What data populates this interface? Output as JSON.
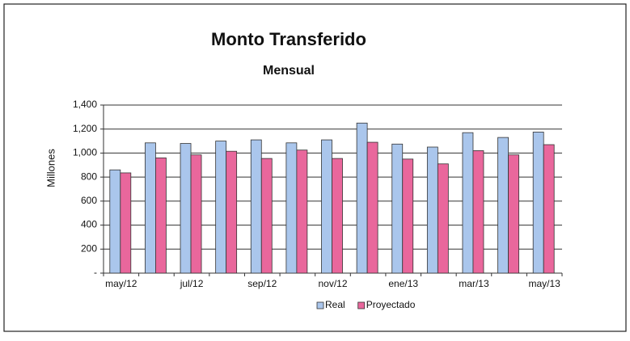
{
  "chart_data": {
    "type": "bar",
    "title": "Monto Transferido",
    "subtitle": "Mensual",
    "y_label": "Millones",
    "categories": [
      "may/12",
      null,
      "jul/12",
      null,
      "sep/12",
      null,
      "nov/12",
      null,
      "ene/13",
      null,
      "mar/13",
      null,
      "may/13"
    ],
    "series": [
      {
        "name": "Real",
        "color": "#aac6ec",
        "values": [
          860,
          1085,
          1080,
          1100,
          1110,
          1085,
          1110,
          1250,
          1075,
          1050,
          1170,
          1130,
          1175
        ]
      },
      {
        "name": "Proyectado",
        "color": "#e9679c",
        "values": [
          835,
          960,
          985,
          1015,
          955,
          1025,
          955,
          1090,
          950,
          910,
          1020,
          985,
          1070
        ]
      }
    ],
    "ylim": [
      0,
      1400
    ],
    "yticks": [
      {
        "value": 0,
        "label": "-"
      },
      200,
      400,
      600,
      800,
      {
        "value": 1000,
        "label": "1,000"
      },
      {
        "value": 1200,
        "label": "1,200"
      },
      {
        "value": 1400,
        "label": "1,400"
      }
    ],
    "grid": true,
    "legend": "bottom"
  }
}
